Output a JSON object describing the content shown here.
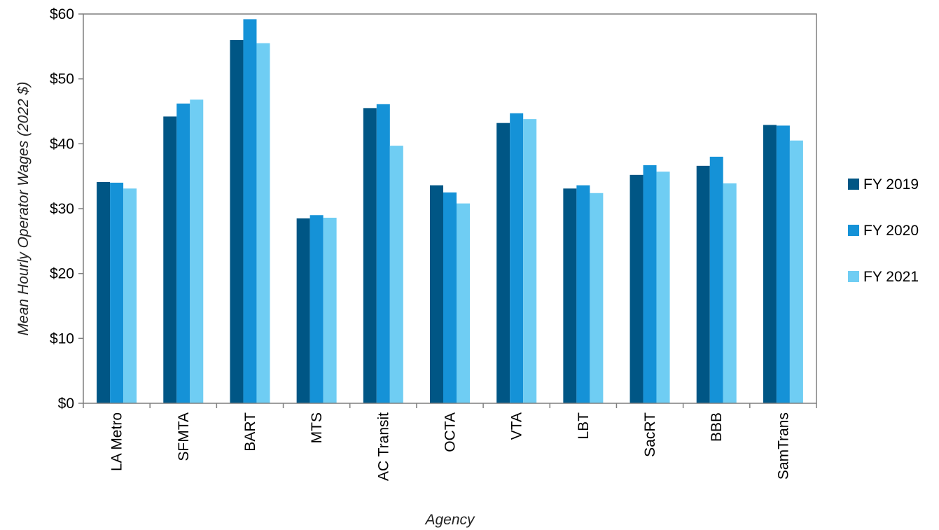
{
  "chart_data": {
    "type": "bar",
    "title": "",
    "xlabel": "Agency",
    "ylabel": "Mean Hourly Operator Wages (2022 $)",
    "ylim": [
      0,
      60
    ],
    "yticks": [
      0,
      10,
      20,
      30,
      40,
      50,
      60
    ],
    "ytick_labels": [
      "$0",
      "$10",
      "$20",
      "$30",
      "$40",
      "$50",
      "$60"
    ],
    "grid": false,
    "legend_position": "right",
    "categories": [
      "LA Metro",
      "SFMTA",
      "BART",
      "MTS",
      "AC Transit",
      "OCTA",
      "VTA",
      "LBT",
      "SacRT",
      "BBB",
      "SamTrans"
    ],
    "series": [
      {
        "name": "FY 2019",
        "color": "#005685",
        "values": [
          34.1,
          44.2,
          56.0,
          28.5,
          45.5,
          33.6,
          43.2,
          33.1,
          35.2,
          36.6,
          42.9
        ]
      },
      {
        "name": "FY 2020",
        "color": "#1592d7",
        "values": [
          34.0,
          46.2,
          59.2,
          29.0,
          46.1,
          32.5,
          44.7,
          33.6,
          36.7,
          38.0,
          42.8
        ]
      },
      {
        "name": "FY 2021",
        "color": "#6fcdf3",
        "values": [
          33.1,
          46.8,
          55.5,
          28.6,
          39.7,
          30.8,
          43.8,
          32.4,
          35.7,
          33.9,
          40.5
        ]
      }
    ]
  }
}
